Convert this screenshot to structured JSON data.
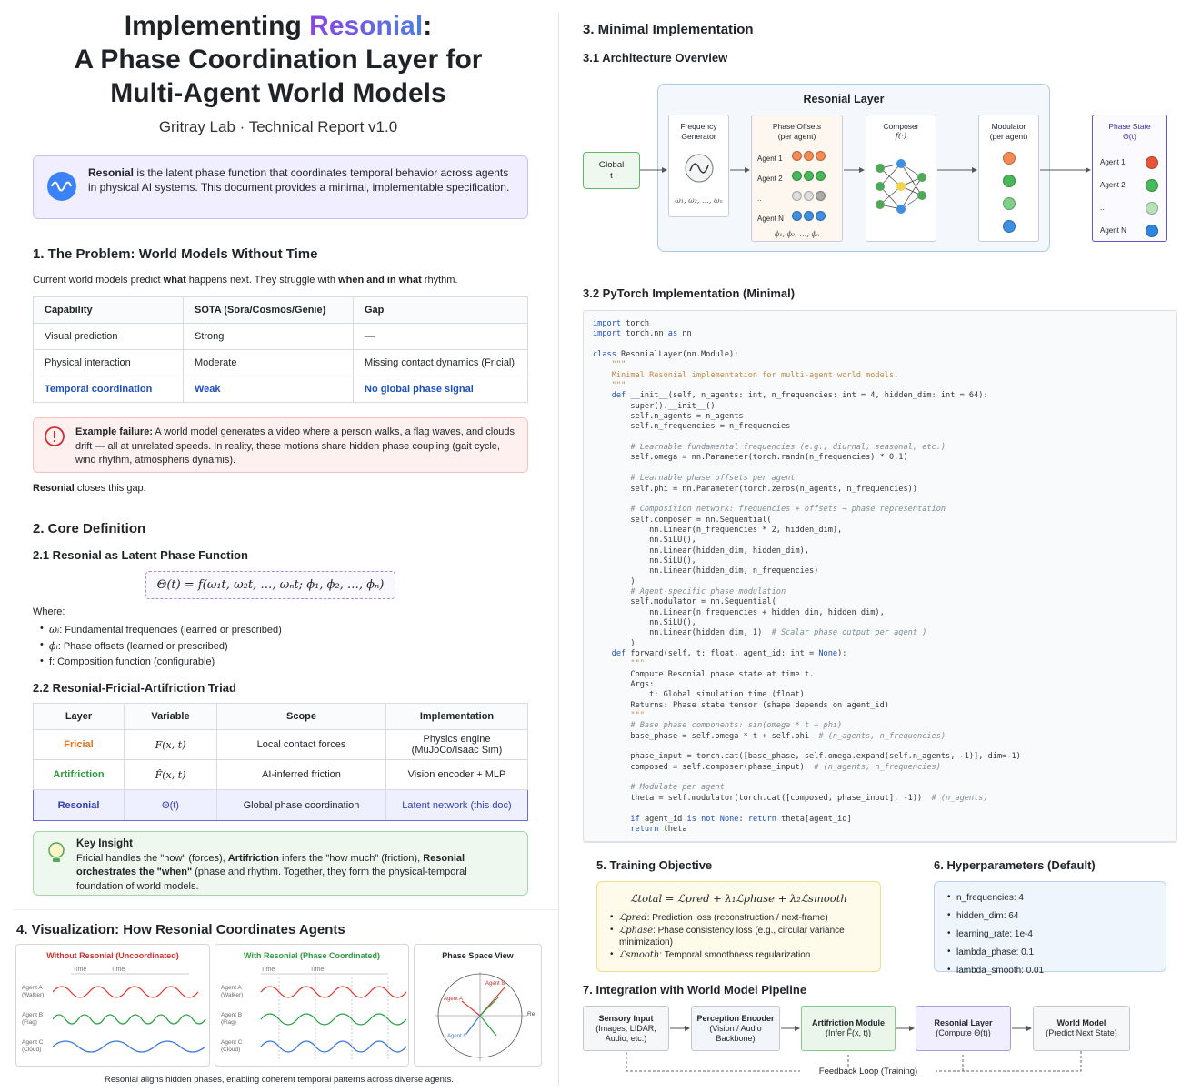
{
  "header": {
    "title_pre": "Implementing ",
    "title_brand": "Resonial",
    "title_post": ":",
    "title_line2": "A Phase Coordination Layer for",
    "title_line3": "Multi-Agent World Models",
    "subtitle": "Gritray Lab · Technical Report v1.0"
  },
  "intro": {
    "bold": "Resonial",
    "text": " is the latent phase function that coordinates temporal behavior across agents in physical AI systems. This document provides a minimal, implementable specification."
  },
  "s1": {
    "title": "1. The Problem: World Models Without Time",
    "lead_a": "Current world models predict ",
    "lead_b": "what",
    "lead_c": " happens next. They struggle with ",
    "lead_d": "when and in what",
    "lead_e": " rhythm.",
    "headers": [
      "Capability",
      "SOTA (Sora/Cosmos/Genie)",
      "Gap"
    ],
    "rows": [
      [
        "Visual prediction",
        "Strong",
        "—"
      ],
      [
        "Physical interaction",
        "Moderate",
        "Missing contact dynamics (Fricial)"
      ],
      [
        "Temporal coordination",
        "Weak",
        "No global phase signal"
      ]
    ],
    "failure_bold": "Example failure:",
    "failure_text": " A world model generates a video where a person walks, a flag waves, and clouds drift — all at unrelated speeds. In reality, these motions share hidden phase coupling (gait cycle, wind rhythm, atmospheris dynamis).",
    "close_bold": "Resonial",
    "close_text": " closes this gap."
  },
  "s2": {
    "title": "2. Core Definition",
    "sub1": "2.1 Resonial as Latent Phase Function",
    "formula": "Θ(t) = f(ω₁t, ω₂t, …, ωₙt; ϕ₁, ϕ₂, …, ϕₙ)",
    "where": "Where:",
    "bullets": [
      {
        "sym": "ωᵢ",
        "bold": ": Fundamental frequencies",
        "rest": " (learned or prescribed)"
      },
      {
        "sym": "ϕᵢ",
        "bold": ": Phase offsets",
        "rest": " (learned or prescribed)"
      },
      {
        "sym": "f",
        "bold": ": Composition function",
        "rest": " (configurable)"
      }
    ],
    "sub2": "2.2 Resonial-Fricial-Artifriction Triad",
    "triad_headers": [
      "Layer",
      "Variable",
      "Scope",
      "Implementation"
    ],
    "triad_rows": [
      {
        "layer": "Fricial",
        "var": "F(x, t)",
        "scope": "Local contact forces",
        "impl": "Physics engine (MuJoCo/Isaac Sim)",
        "color": "#e8701a"
      },
      {
        "layer": "Artifriction",
        "var": "F̂(x, t)",
        "scope": "AI-inferred friction",
        "impl": "Vision encoder + MLP",
        "color": "#2e9a3a"
      },
      {
        "layer": "Resonial",
        "var": "Θ(t)",
        "scope": "Global phase coordination",
        "impl": "Latent network (this doc)",
        "color": "#2f3fb8"
      }
    ],
    "insight_title": "Key Insight",
    "insight_1": "Fricial handles the \"how\" (forces), ",
    "insight_2": "Artifriction",
    "insight_3": " infers the \"how much\" (friction), ",
    "insight_4": "Resonial orchestrates the \"when\"",
    "insight_5": " (phase and rhythm. Together, they form the physical-temporal foundation of world models."
  },
  "s4": {
    "title": "4. Visualization: How Resonial Coordinates Agents",
    "panel1_title": "Without Resonial (Uncoordinated)",
    "panel2_title": "With Resonial (Phase Coordinated)",
    "panel3_title": "Phase Space View",
    "time_label": "Time",
    "agents": [
      "Agent A (Walker)",
      "Agent B (Flag)",
      "Agent C (Cloud)"
    ],
    "ps_labels": [
      "Agent A",
      "Agent B",
      "Agent C",
      "Re"
    ],
    "caption": "Resonial aligns hidden phases, enabling coherent temporal patterns across diverse agents."
  },
  "s3": {
    "title": "3. Minimal Implementation",
    "sub1": "3.1 Architecture Overview",
    "layer_title": "Resonial Layer",
    "global_label": "Global",
    "global_sub": "t",
    "freq_gen": "Frequency Generator",
    "freq_sub": "ω₁, ω₂, …, ωₙ",
    "phase_offsets": "Phase Offsets",
    "per_agent": "(per agent)",
    "agent_labels": [
      "Agent 1",
      "Agent 2",
      "..",
      "Agent N"
    ],
    "phi_sub": "ϕ₁, ϕ₂, …, ϕₙ",
    "composer": "Composer",
    "composer_sub": "f(·)",
    "modulator": "Modulator",
    "phase_state": "Phase State",
    "phase_state_sub": "Θ(t)",
    "sub2": "3.2 PyTorch Implementation (Minimal)"
  },
  "code_lines": [
    [
      "kw",
      "import "
    ],
    [
      "",
      "torch"
    ],
    null,
    [
      "kw",
      "import "
    ],
    [
      "",
      "torch.nn "
    ],
    [
      "kw",
      "as "
    ],
    [
      "",
      "nn"
    ]
  ],
  "code": [
    "import torch",
    "import torch.nn as nn",
    "",
    "class ResonialLayer(nn.Module):",
    "    \"\"\"",
    "    Minimal Resonial implementation for multi-agent world models.",
    "    \"\"\"",
    "    def __init__(self, n_agents: int, n_frequencies: int = 4, hidden_dim: int = 64):",
    "        super().__init__()",
    "        self.n_agents = n_agents",
    "        self.n_frequencies = n_frequencies",
    "",
    "        # Learnable fundamental frequencies (e.g., diurnal, seasonal, etc.)",
    "        self.omega = nn.Parameter(torch.randn(n_frequencies) * 0.1)",
    "",
    "        # Learnable phase offsets per agent",
    "        self.phi = nn.Parameter(torch.zeros(n_agents, n_frequencies))",
    "",
    "        # Composition network: frequencies + offsets → phase representation",
    "        self.composer = nn.Sequential(",
    "            nn.Linear(n_frequencies * 2, hidden_dim),",
    "            nn.SiLU(),",
    "            nn.Linear(hidden_dim, hidden_dim),",
    "            nn.SiLU(),",
    "            nn.Linear(hidden_dim, n_frequencies)",
    "        )",
    "        # Agent-specific phase modulation",
    "        self.modulator = nn.Sequential(",
    "            nn.Linear(n_frequencies + hidden_dim, hidden_dim),",
    "            nn.SiLU(),",
    "            nn.Linear(hidden_dim, 1)  # Scalar phase output per agent )",
    "        )",
    "    def forward(self, t: float, agent_id: int = None):",
    "        \"\"\"",
    "        Compute Resonial phase state at time t.",
    "        Args:",
    "            t: Global simulation time (float)",
    "        Returns: Phase state tensor (shape depends on agent_id)",
    "        \"\"\"",
    "        # Base phase components: sin(omega * t + phi)",
    "        base_phase = self.omega * t + self.phi  # (n_agents, n_frequencies)",
    "",
    "        phase_input = torch.cat([base_phase, self.omega.expand(self.n_agents, -1)], dim=-1)",
    "        composed = self.composer(phase_input)  # (n_agents, n_frequencies)",
    "",
    "        # Modulate per agent",
    "        theta = self.modulator(torch.cat([composed, phase_input], -1))  # (n_agents)",
    "",
    "        if agent_id is not None: return theta[agent_id]",
    "        return theta"
  ],
  "s5": {
    "title": "5. Training Objective",
    "formula": "ℒtotal = ℒpred + λ₁ℒphase + λ₂ℒsmooth",
    "items": [
      {
        "sym": "ℒpred",
        "text": ": Prediction loss (reconstruction / next-frame)"
      },
      {
        "sym": "ℒphase",
        "text": ": Phase consistency loss (e.g., circular variance minimization)"
      },
      {
        "sym": "ℒsmooth",
        "text": ": Temporal smoothness regularization"
      }
    ]
  },
  "s6": {
    "title": "6. Hyperparameters (Default)",
    "items": [
      "n_frequencies: 4",
      "hidden_dim: 64",
      "learning_rate: 1e-4",
      "lambda_phase: 0.1",
      "lambda_smooth: 0.01"
    ]
  },
  "s7": {
    "title": "7. Integration with World Model Pipeline",
    "boxes": [
      {
        "t": "Sensory Input",
        "s": "(Images, LIDAR, Audio, etc.)"
      },
      {
        "t": "Perception Encoder",
        "s": "(Vision / Audio Backbone)"
      },
      {
        "t": "Artifriction Module",
        "s": "(Infer F̂(x, t))"
      },
      {
        "t": "Resonial Layer",
        "s": "(Compute Θ(t))"
      },
      {
        "t": "World Model",
        "s": "(Predict Next State)"
      }
    ],
    "feedback": "Feedback Loop (Training)"
  }
}
